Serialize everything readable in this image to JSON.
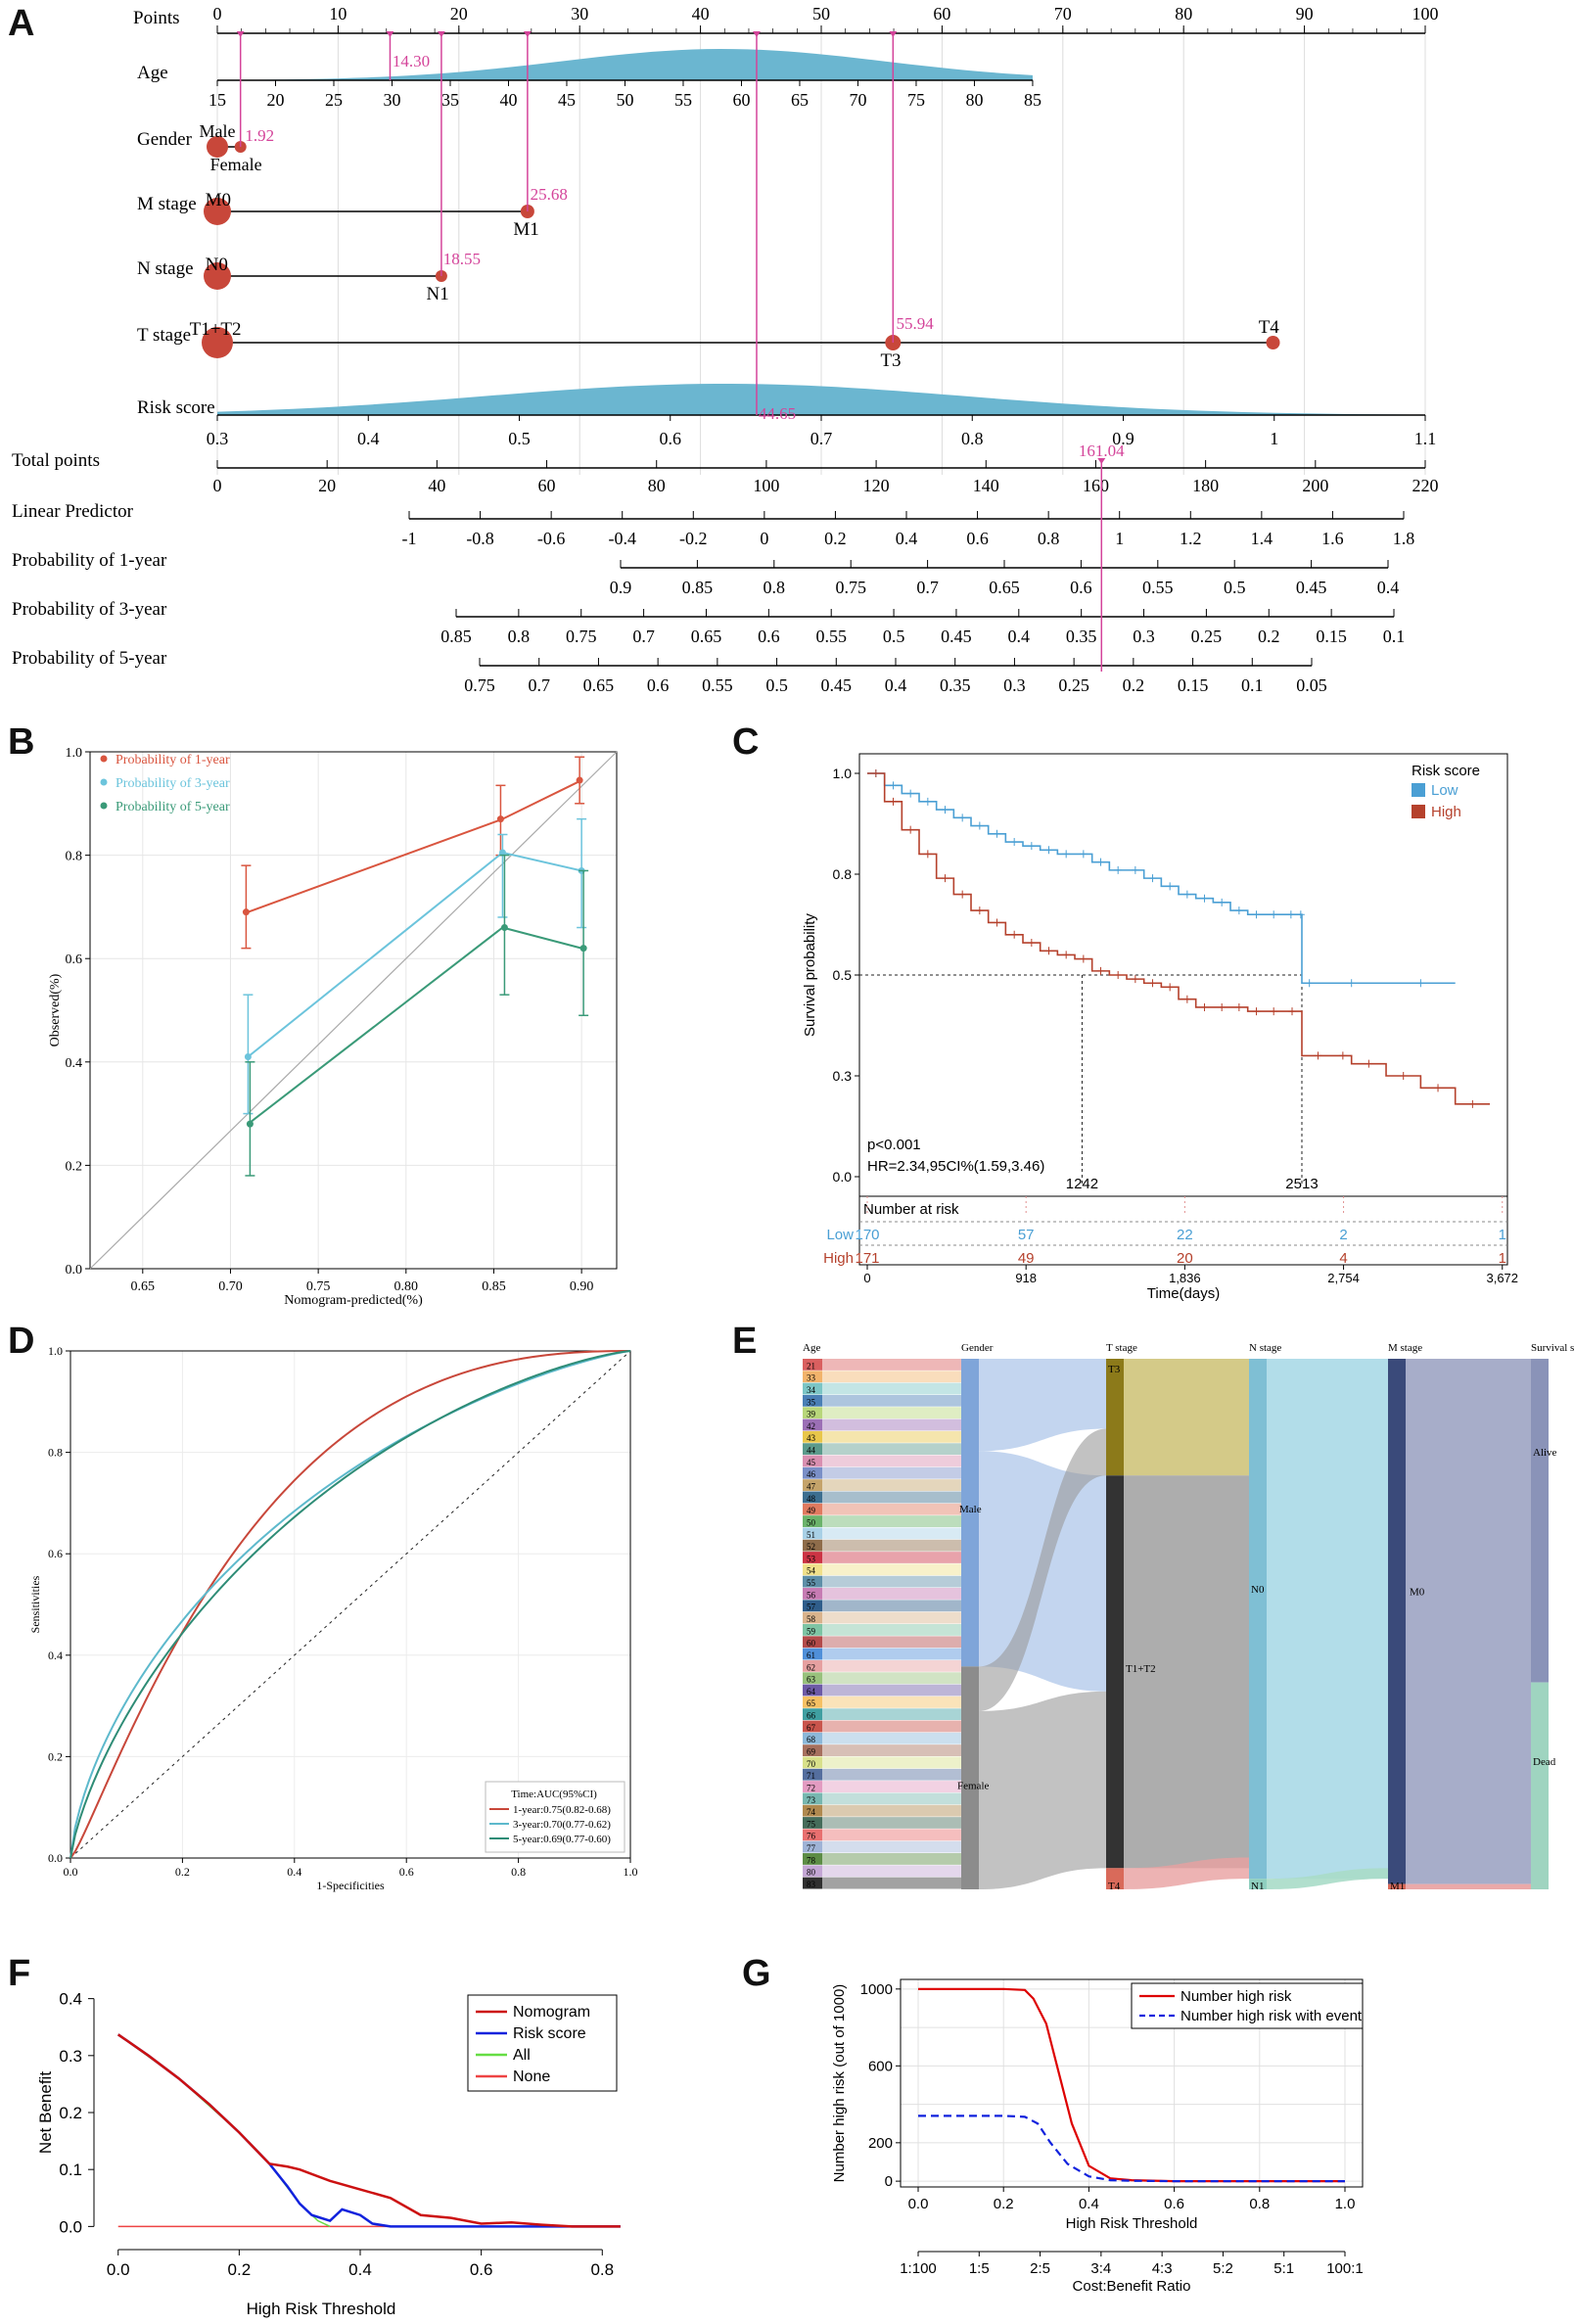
{
  "panels": [
    "A",
    "B",
    "C",
    "D",
    "E",
    "F",
    "G"
  ],
  "chart_data": [
    {
      "id": "A",
      "type": "nomogram",
      "title": "",
      "axes": [
        {
          "label": "Points",
          "min": 0,
          "max": 100,
          "ticks": [
            "0",
            "10",
            "20",
            "30",
            "40",
            "50",
            "60",
            "70",
            "80",
            "90",
            "100"
          ],
          "tick_values": [
            0,
            10,
            20,
            30,
            40,
            50,
            60,
            70,
            80,
            90,
            100
          ]
        },
        {
          "label": "Age",
          "ticks": [
            "15",
            "20",
            "25",
            "30",
            "35",
            "40",
            "45",
            "50",
            "55",
            "60",
            "65",
            "70",
            "75",
            "80",
            "85"
          ]
        },
        {
          "label": "Gender",
          "levels": [
            "Male",
            "Female"
          ],
          "value_label": "1.92"
        },
        {
          "label": "M stage",
          "levels": [
            "M0",
            "M1"
          ],
          "value_label": "25.68"
        },
        {
          "label": "N stage",
          "levels": [
            "N0",
            "N1"
          ],
          "value_label": "18.55"
        },
        {
          "label": "T stage",
          "levels": [
            "T1+T2",
            "T3",
            "T4"
          ],
          "value_label": "55.94"
        },
        {
          "label": "Risk score",
          "ticks": [
            "0.3",
            "0.4",
            "0.5",
            "0.6",
            "0.7",
            "0.8",
            "0.9",
            "1",
            "1.1"
          ],
          "value_label": "44.65"
        },
        {
          "label": "Total points",
          "ticks": [
            "0",
            "20",
            "40",
            "60",
            "80",
            "100",
            "120",
            "140",
            "160",
            "180",
            "200",
            "220"
          ],
          "value_label": "161.04"
        },
        {
          "label": "Linear Predictor",
          "ticks": [
            "-1",
            "-0.8",
            "-0.6",
            "-0.4",
            "-0.2",
            "0",
            "0.2",
            "0.4",
            "0.6",
            "0.8",
            "1",
            "1.2",
            "1.4",
            "1.6",
            "1.8"
          ]
        },
        {
          "label": "Probability of 1-year",
          "ticks": [
            "0.9",
            "0.85",
            "0.8",
            "0.75",
            "0.7",
            "0.65",
            "0.6",
            "0.55",
            "0.5",
            "0.45",
            "0.4"
          ]
        },
        {
          "label": "Probability of 3-year",
          "ticks": [
            "0.85",
            "0.8",
            "0.75",
            "0.7",
            "0.65",
            "0.6",
            "0.55",
            "0.5",
            "0.45",
            "0.4",
            "0.35",
            "0.3",
            "0.25",
            "0.2",
            "0.15",
            "0.1"
          ]
        },
        {
          "label": "Probability of 5-year",
          "ticks": [
            "0.75",
            "0.7",
            "0.65",
            "0.6",
            "0.55",
            "0.5",
            "0.45",
            "0.4",
            "0.35",
            "0.3",
            "0.25",
            "0.2",
            "0.15",
            "0.1",
            "0.05"
          ]
        }
      ],
      "point_markers": [
        1.92,
        14.3,
        18.55,
        25.68,
        44.65,
        55.94
      ],
      "age_points_label": "14.30"
    },
    {
      "id": "B",
      "type": "line",
      "title": "",
      "xlabel": "Nomogram-predicted(%)",
      "ylabel": "Observed(%)",
      "xlim": [
        0.62,
        0.92
      ],
      "ylim": [
        0,
        1.0
      ],
      "x_ticks": [
        "0.65",
        "0.70",
        "0.75",
        "0.80",
        "0.85",
        "0.90"
      ],
      "y_ticks": [
        "0.0",
        "0.2",
        "0.4",
        "0.6",
        "0.8",
        "1.0"
      ],
      "legend": [
        "Probability of 1-year",
        "Probability of 3-year",
        "Probability of 5-year"
      ],
      "series": [
        {
          "name": "Probability of 1-year",
          "color": "#d9553f",
          "x": [
            0.71,
            0.855,
            0.9
          ],
          "y": [
            0.69,
            0.87,
            0.945
          ],
          "err_low": [
            0.62,
            0.8,
            0.9
          ],
          "err_high": [
            0.78,
            0.935,
            0.99
          ]
        },
        {
          "name": "Probability of 3-year",
          "color": "#6cc4dc",
          "x": [
            0.71,
            0.855,
            0.9
          ],
          "y": [
            0.41,
            0.805,
            0.77
          ],
          "err_low": [
            0.3,
            0.68,
            0.66
          ],
          "err_high": [
            0.53,
            0.84,
            0.87
          ]
        },
        {
          "name": "Probability of 5-year",
          "color": "#3a9a78",
          "x": [
            0.71,
            0.855,
            0.9
          ],
          "y": [
            0.28,
            0.66,
            0.62
          ],
          "err_low": [
            0.18,
            0.53,
            0.49
          ],
          "err_high": [
            0.4,
            0.8,
            0.77
          ]
        }
      ]
    },
    {
      "id": "C",
      "type": "line",
      "title": "",
      "xlabel": "Time(days)",
      "ylabel": "Survival probability",
      "xlim": [
        0,
        3672
      ],
      "ylim": [
        0,
        1.0
      ],
      "x_ticks": [
        "0",
        "918",
        "1,836",
        "2,754",
        "3,672"
      ],
      "x_tick_values": [
        0,
        918,
        1836,
        2754,
        3672
      ],
      "y_ticks": [
        "0.0",
        "0.3",
        "0.5",
        "0.8",
        "1.0"
      ],
      "y_tick_values": [
        0,
        0.25,
        0.5,
        0.75,
        1.0
      ],
      "legend_title": "Risk score",
      "legend": [
        "Low",
        "High"
      ],
      "median_labels": [
        "1242",
        "2513"
      ],
      "median_values": [
        1242,
        2513
      ],
      "pvalue": "p<0.001",
      "hr": "HR=2.34,95CI%(1.59,3.46)",
      "risk_table_title": "Number at risk",
      "risk_table": [
        {
          "name": "Low",
          "color": "#4a9fd4",
          "counts": [
            "170",
            "57",
            "22",
            "2",
            "1"
          ]
        },
        {
          "name": "High",
          "color": "#b5412c",
          "counts": [
            "171",
            "49",
            "20",
            "4",
            "1"
          ]
        }
      ],
      "series": [
        {
          "name": "Low",
          "color": "#4a9fd4",
          "x": [
            0,
            100,
            200,
            300,
            400,
            500,
            600,
            700,
            800,
            900,
            1000,
            1100,
            1200,
            1300,
            1400,
            1500,
            1600,
            1700,
            1800,
            1900,
            2000,
            2100,
            2200,
            2300,
            2400,
            2500,
            2513,
            2600,
            3000,
            3400
          ],
          "y": [
            1.0,
            0.97,
            0.95,
            0.93,
            0.91,
            0.89,
            0.87,
            0.85,
            0.83,
            0.82,
            0.81,
            0.8,
            0.8,
            0.78,
            0.76,
            0.76,
            0.74,
            0.72,
            0.7,
            0.69,
            0.68,
            0.66,
            0.65,
            0.65,
            0.65,
            0.65,
            0.48,
            0.48,
            0.48,
            0.48
          ]
        },
        {
          "name": "High",
          "color": "#b5412c",
          "x": [
            0,
            100,
            200,
            300,
            400,
            500,
            600,
            700,
            800,
            900,
            1000,
            1100,
            1200,
            1300,
            1400,
            1500,
            1600,
            1700,
            1800,
            1900,
            2000,
            2100,
            2200,
            2300,
            2400,
            2513,
            2700,
            2800,
            3000,
            3200,
            3400,
            3600
          ],
          "y": [
            1.0,
            0.93,
            0.86,
            0.8,
            0.74,
            0.7,
            0.66,
            0.63,
            0.6,
            0.58,
            0.56,
            0.55,
            0.54,
            0.51,
            0.5,
            0.49,
            0.48,
            0.47,
            0.44,
            0.42,
            0.42,
            0.42,
            0.41,
            0.41,
            0.41,
            0.3,
            0.3,
            0.28,
            0.25,
            0.22,
            0.18,
            0.18
          ]
        }
      ]
    },
    {
      "id": "D",
      "type": "line",
      "title": "",
      "xlabel": "1-Specificities",
      "ylabel": "Sensitivities",
      "xlim": [
        0,
        1
      ],
      "ylim": [
        0,
        1
      ],
      "x_ticks": [
        "0.0",
        "0.2",
        "0.4",
        "0.6",
        "0.8",
        "1.0"
      ],
      "y_ticks": [
        "0.0",
        "0.2",
        "0.4",
        "0.6",
        "0.8",
        "1.0"
      ],
      "legend_title": "Time:AUC(95%CI)",
      "legend": [
        "1-year:0.75(0.82-0.68)",
        "3-year:0.70(0.77-0.62)",
        "5-year:0.69(0.77-0.60)"
      ],
      "series": [
        {
          "name": "1-year",
          "color": "#c8473a",
          "auc": 0.75
        },
        {
          "name": "3-year",
          "color": "#5db9cc",
          "auc": 0.7
        },
        {
          "name": "5-year",
          "color": "#2e8c76",
          "auc": 0.69
        }
      ]
    },
    {
      "id": "E",
      "type": "sankey",
      "title": "",
      "columns": [
        "Age",
        "Gender",
        "T stage",
        "N stage",
        "M stage",
        "Survival status"
      ],
      "age_labels": [
        "21",
        "33",
        "34",
        "35",
        "39",
        "42",
        "43",
        "44",
        "45",
        "46",
        "47",
        "48",
        "49",
        "50",
        "51",
        "52",
        "53",
        "54",
        "55",
        "56",
        "57",
        "58",
        "59",
        "60",
        "61",
        "62",
        "63",
        "64",
        "65",
        "66",
        "67",
        "68",
        "69",
        "70",
        "71",
        "72",
        "73",
        "74",
        "75",
        "76",
        "77",
        "78",
        "80",
        "83"
      ],
      "nodes": {
        "Gender": [
          {
            "label": "Male",
            "share": 0.58
          },
          {
            "label": "Female",
            "share": 0.42
          }
        ],
        "T stage": [
          {
            "label": "T3",
            "share": 0.22
          },
          {
            "label": "T1+T2",
            "share": 0.74
          },
          {
            "label": "T4",
            "share": 0.04
          }
        ],
        "N stage": [
          {
            "label": "N0",
            "share": 0.98
          },
          {
            "label": "N1",
            "share": 0.02
          }
        ],
        "M stage": [
          {
            "label": "M0",
            "share": 0.99
          },
          {
            "label": "M1",
            "share": 0.01
          }
        ],
        "Survival status": [
          {
            "label": "Alive",
            "share": 0.61
          },
          {
            "label": "Dead",
            "share": 0.39
          }
        ]
      }
    },
    {
      "id": "F",
      "type": "line",
      "title": "",
      "xlabel": "High Risk Threshold",
      "ylabel": "Net Benefit",
      "xlim": [
        -0.04,
        0.84
      ],
      "ylim": [
        -0.02,
        0.42
      ],
      "x_ticks": [
        "0.0",
        "0.2",
        "0.4",
        "0.6",
        "0.8"
      ],
      "y_ticks": [
        "0.0",
        "0.1",
        "0.2",
        "0.3",
        "0.4"
      ],
      "legend": [
        "Nomogram",
        "Risk score",
        "All",
        "None"
      ],
      "series": [
        {
          "name": "Nomogram",
          "color": "#cc1111",
          "x": [
            0,
            0.05,
            0.1,
            0.15,
            0.2,
            0.25,
            0.28,
            0.3,
            0.35,
            0.4,
            0.45,
            0.5,
            0.55,
            0.6,
            0.65,
            0.7,
            0.75,
            0.83
          ],
          "y": [
            0.337,
            0.3,
            0.26,
            0.215,
            0.165,
            0.11,
            0.105,
            0.1,
            0.08,
            0.065,
            0.05,
            0.02,
            0.015,
            0.005,
            0.007,
            0.003,
            0,
            0
          ]
        },
        {
          "name": "Risk score",
          "color": "#1122dd",
          "x": [
            0,
            0.05,
            0.1,
            0.15,
            0.2,
            0.25,
            0.28,
            0.3,
            0.32,
            0.35,
            0.37,
            0.4,
            0.42,
            0.45,
            0.5,
            0.6,
            0.83
          ],
          "y": [
            0.337,
            0.3,
            0.26,
            0.215,
            0.165,
            0.11,
            0.07,
            0.04,
            0.02,
            0.01,
            0.03,
            0.02,
            0.005,
            0,
            0,
            0,
            0
          ]
        },
        {
          "name": "All",
          "color": "#66dd44",
          "x": [
            0,
            0.1,
            0.2,
            0.25,
            0.3,
            0.33,
            0.35
          ],
          "y": [
            0.337,
            0.26,
            0.165,
            0.11,
            0.04,
            0.01,
            0
          ]
        },
        {
          "name": "None",
          "color": "#ee4444",
          "x": [
            0,
            0.83
          ],
          "y": [
            0,
            0
          ]
        }
      ]
    },
    {
      "id": "G",
      "type": "line",
      "title": "",
      "xlabel": "High Risk Threshold",
      "ylabel": "Number high risk (out of 1000)",
      "xlabel2": "Cost:Benefit Ratio",
      "xlim": [
        0,
        1
      ],
      "ylim": [
        -30,
        1050
      ],
      "x_ticks": [
        "0.0",
        "0.2",
        "0.4",
        "0.6",
        "0.8",
        "1.0"
      ],
      "y_ticks": [
        "0",
        "200",
        "600",
        "1000"
      ],
      "y_tick_values": [
        0,
        200,
        600,
        1000
      ],
      "ratio_ticks": [
        "1:100",
        "1:5",
        "2:5",
        "3:4",
        "4:3",
        "5:2",
        "5:1",
        "100:1"
      ],
      "legend": [
        "Number high risk",
        "Number high risk with event"
      ],
      "series": [
        {
          "name": "Number high risk",
          "color": "#dd0000",
          "dash": false,
          "x": [
            0,
            0.1,
            0.2,
            0.25,
            0.27,
            0.3,
            0.33,
            0.36,
            0.4,
            0.45,
            0.5,
            0.6,
            0.8,
            1.0
          ],
          "y": [
            1000,
            1000,
            1000,
            995,
            950,
            820,
            560,
            300,
            80,
            15,
            5,
            0,
            0,
            0
          ]
        },
        {
          "name": "Number high risk with event",
          "color": "#1122dd",
          "dash": true,
          "x": [
            0,
            0.1,
            0.2,
            0.25,
            0.28,
            0.31,
            0.35,
            0.4,
            0.45,
            0.5,
            0.6,
            0.8,
            1.0
          ],
          "y": [
            340,
            340,
            340,
            335,
            300,
            200,
            90,
            25,
            5,
            2,
            0,
            0,
            0
          ]
        }
      ]
    }
  ]
}
